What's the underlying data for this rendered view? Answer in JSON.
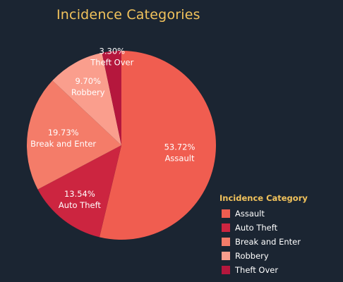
{
  "chart_data": {
    "type": "pie",
    "title": "Incidence Categories",
    "legend_title": "Incidence Category",
    "legend_position": "bottom-right",
    "slices": [
      {
        "name": "Assault",
        "value": 53.72,
        "label": "53.72%",
        "color": "#f05d50"
      },
      {
        "name": "Auto Theft",
        "value": 13.54,
        "label": "13.54%",
        "color": "#cc2540"
      },
      {
        "name": "Break and Enter",
        "value": 19.73,
        "label": "19.73%",
        "color": "#f47c69"
      },
      {
        "name": "Robbery",
        "value": 9.7,
        "label": "9.70%",
        "color": "#fa9e8d"
      },
      {
        "name": "Theft Over",
        "value": 3.3,
        "label": "3.30%",
        "color": "#b5173d"
      }
    ]
  }
}
